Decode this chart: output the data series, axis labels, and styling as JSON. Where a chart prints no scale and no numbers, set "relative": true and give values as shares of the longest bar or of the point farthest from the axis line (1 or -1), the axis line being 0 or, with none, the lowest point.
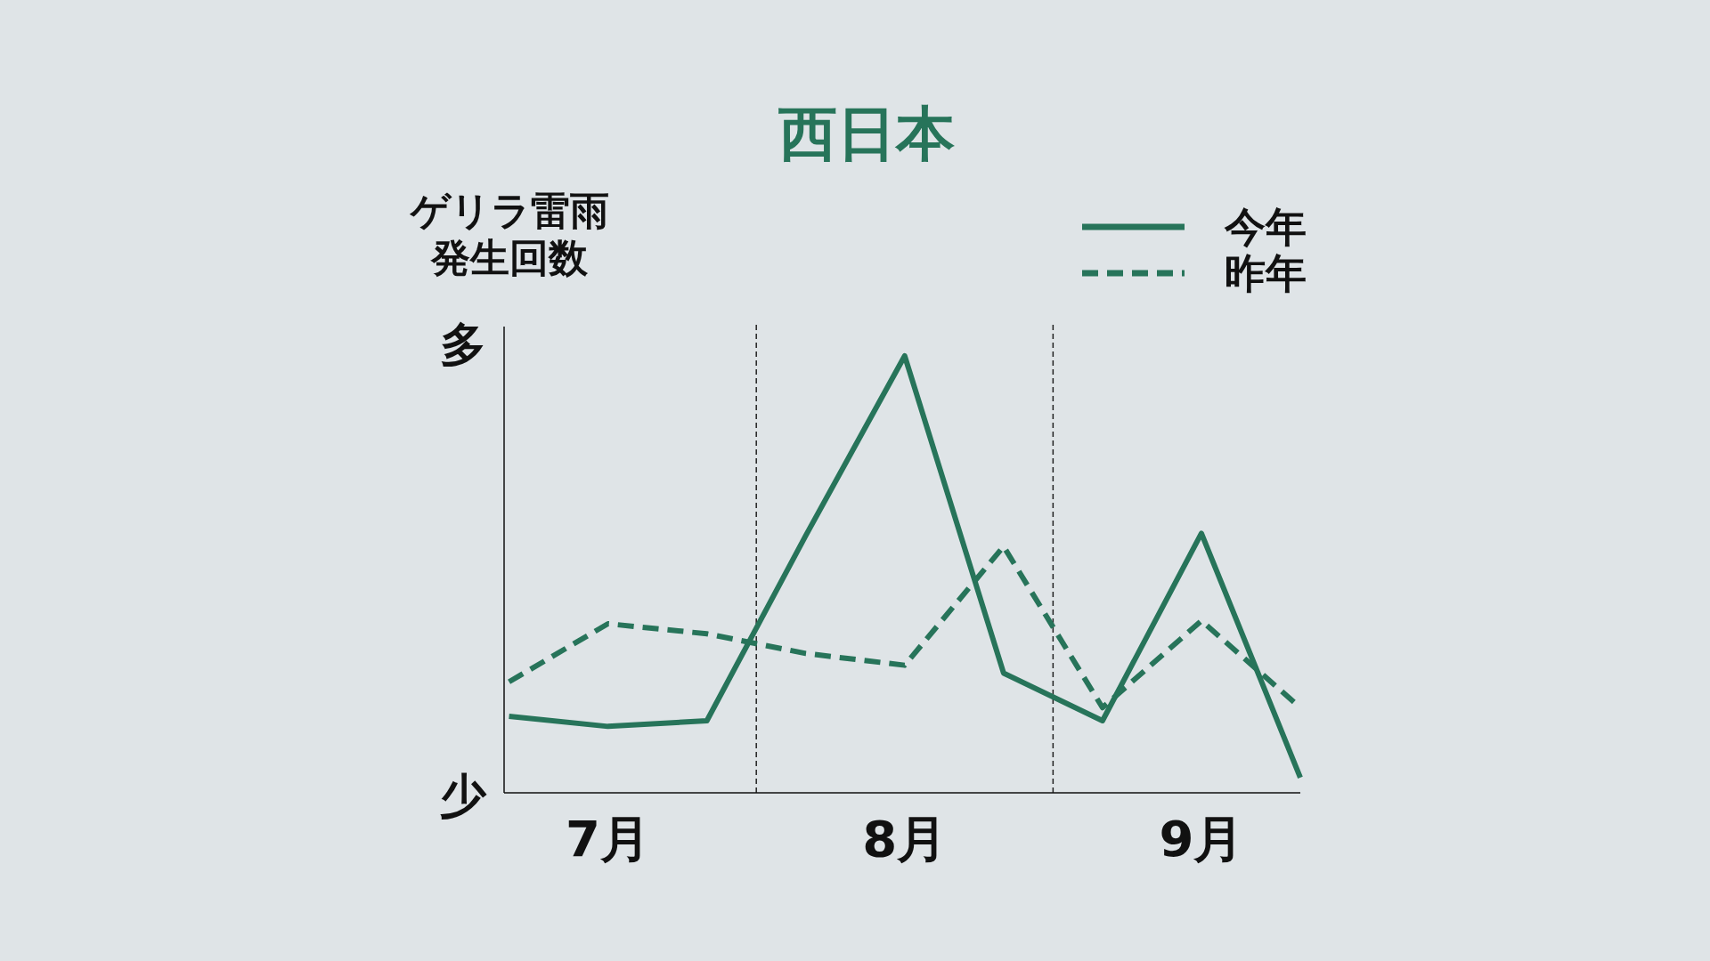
{
  "chart_data": {
    "type": "line",
    "title": "西日本",
    "ylabel": "ゲリラ雷雨発生回数",
    "relative": true,
    "categories": [
      null,
      "7月",
      null,
      null,
      "8月",
      null,
      null,
      "9月",
      null
    ],
    "series": [
      {
        "name": "今年",
        "color": "#27745a",
        "line_style": "solid",
        "values": [
          0.175,
          0.152,
          0.165,
          0.589,
          1,
          0.274,
          0.165,
          0.594,
          0.035
        ]
      },
      {
        "name": "昨年",
        "color": "#27745a",
        "line_style": "dashed",
        "values": [
          0.254,
          0.387,
          0.364,
          0.319,
          0.292,
          0.564,
          0.195,
          0.394,
          0.195
        ]
      }
    ],
    "annotations": [
      "多",
      "少"
    ],
    "legend": "top right"
  }
}
